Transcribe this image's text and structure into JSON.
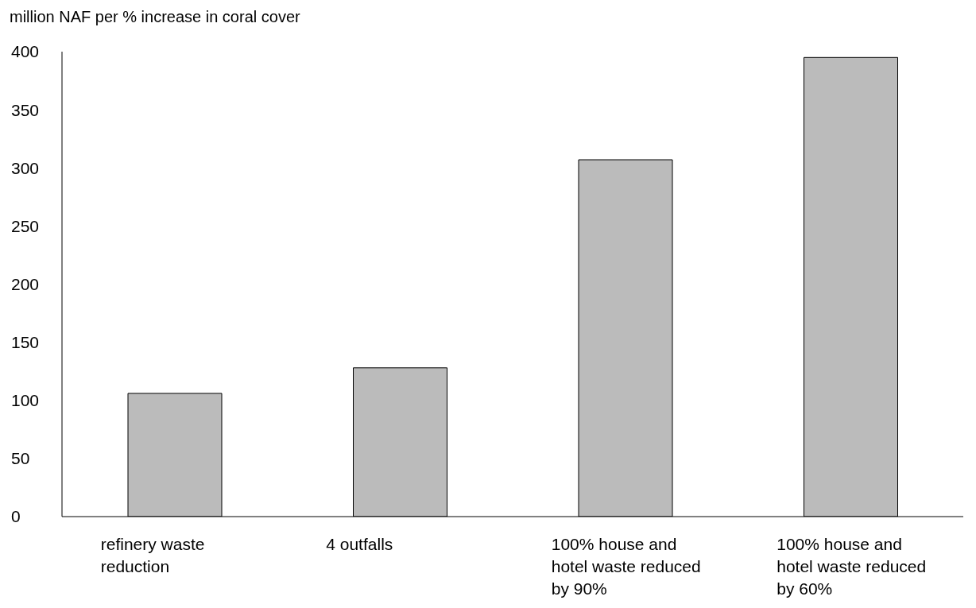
{
  "chart_data": {
    "type": "bar",
    "ylabel": "million NAF per % increase in coral cover",
    "categories": [
      "refinery waste reduction",
      "4 outfalls",
      "100% house and hotel waste reduced by 90%",
      "100% house and hotel waste reduced by 60%"
    ],
    "values": [
      106,
      128,
      307,
      395
    ],
    "color": "#bbbbbb",
    "ylim": [
      0,
      400
    ],
    "yticks": [
      0,
      50,
      100,
      150,
      200,
      250,
      300,
      350,
      400
    ],
    "grid": false,
    "legend": false
  }
}
